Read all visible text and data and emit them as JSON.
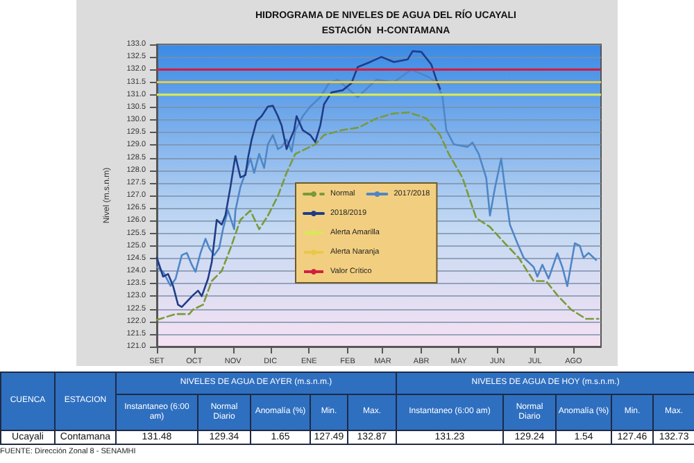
{
  "chart_data": [
    {
      "type": "line",
      "title": "HIDROGRAMA DE NIVELES DE AGUA DEL RÍO UCAYALI",
      "subtitle": "ESTACIÓN  H-CONTAMANA",
      "ylabel": "Nivel (m.s.n.m)",
      "xlim": [
        "2018-09-01",
        "2019-08-23"
      ],
      "xticks": [
        {
          "value": "2018-09-01",
          "label": "SET"
        },
        {
          "value": "2018-10-01",
          "label": "OCT"
        },
        {
          "value": "2018-11-01",
          "label": "NOV"
        },
        {
          "value": "2018-12-01",
          "label": "DIC"
        },
        {
          "value": "2019-01-01",
          "label": "ENE"
        },
        {
          "value": "2019-02-01",
          "label": "FEB"
        },
        {
          "value": "2019-03-01",
          "label": "MAR"
        },
        {
          "value": "2019-04-01",
          "label": "ABR"
        },
        {
          "value": "2019-05-01",
          "label": "MAY"
        },
        {
          "value": "2019-06-01",
          "label": "JUN"
        },
        {
          "value": "2019-07-01",
          "label": "JUL"
        },
        {
          "value": "2019-08-01",
          "label": "AGO"
        }
      ],
      "ylim": [
        121,
        133
      ],
      "yticks": [
        {
          "value": 121,
          "label": "121.0"
        },
        {
          "value": 121.5,
          "label": "121.5"
        },
        {
          "value": 122,
          "label": "122.0"
        },
        {
          "value": 122.5,
          "label": "122.5"
        },
        {
          "value": 123,
          "label": "123.0"
        },
        {
          "value": 123.5,
          "label": "123.5"
        },
        {
          "value": 124,
          "label": "124.0"
        },
        {
          "value": 124.5,
          "label": "124.5"
        },
        {
          "value": 125,
          "label": "125.0"
        },
        {
          "value": 125.5,
          "label": "125.5"
        },
        {
          "value": 126,
          "label": "126.0"
        },
        {
          "value": 126.5,
          "label": "126.5"
        },
        {
          "value": 127,
          "label": "127.0"
        },
        {
          "value": 127.5,
          "label": "127.5"
        },
        {
          "value": 128,
          "label": "128.0"
        },
        {
          "value": 128.5,
          "label": "128.5"
        },
        {
          "value": 129,
          "label": "129.0"
        },
        {
          "value": 129.5,
          "label": "129.5"
        },
        {
          "value": 130,
          "label": "130.0"
        },
        {
          "value": 130.5,
          "label": "130.5"
        },
        {
          "value": 131,
          "label": "131.0"
        },
        {
          "value": 131.5,
          "label": "131.5"
        },
        {
          "value": 132,
          "label": "132.0"
        },
        {
          "value": 132.5,
          "label": "132.5"
        },
        {
          "value": 133,
          "label": "133.0"
        }
      ],
      "grid": "y",
      "legend": "bottom",
      "marker": "none",
      "series": [
        {
          "name": "Normal",
          "color": "#7a9a3a",
          "line_style": "dashed",
          "x": [
            "2018-09-01",
            "2018-09-16",
            "2018-09-27",
            "2018-09-30",
            "2018-10-08",
            "2018-10-15",
            "2018-10-23",
            "2018-10-30",
            "2018-11-07",
            "2018-11-15",
            "2018-11-22",
            "2018-11-29",
            "2018-12-07",
            "2018-12-14",
            "2018-12-21",
            "2018-12-29",
            "2019-01-06",
            "2019-01-13",
            "2019-01-28",
            "2019-02-10",
            "2019-02-24",
            "2019-03-09",
            "2019-03-22",
            "2019-04-05",
            "2019-04-16",
            "2019-04-23",
            "2019-05-04",
            "2019-05-15",
            "2019-05-26",
            "2019-06-07",
            "2019-06-18",
            "2019-06-30",
            "2019-07-10",
            "2019-07-19",
            "2019-07-30",
            "2019-08-11",
            "2019-08-21"
          ],
          "values": [
            122.06,
            122.29,
            122.29,
            122.47,
            122.66,
            123.6,
            124.0,
            124.9,
            126.03,
            126.4,
            125.66,
            126.2,
            126.97,
            127.9,
            128.65,
            128.84,
            129.03,
            129.4,
            129.6,
            129.7,
            130.06,
            130.25,
            130.3,
            130.06,
            129.4,
            128.65,
            127.7,
            126.1,
            125.75,
            125.1,
            124.53,
            123.6,
            123.6,
            123.04,
            122.47,
            122.1,
            122.1
          ]
        },
        {
          "name": "2017/2018",
          "color": "#4f86c6",
          "line_style": "solid",
          "x": [
            "2018-09-01",
            "2018-09-06",
            "2018-09-12",
            "2018-09-16",
            "2018-09-21",
            "2018-09-25",
            "2018-09-29",
            "2018-10-02",
            "2018-10-06",
            "2018-10-10",
            "2018-10-13",
            "2018-10-17",
            "2018-10-21",
            "2018-10-24",
            "2018-10-28",
            "2018-11-02",
            "2018-11-03",
            "2018-11-07",
            "2018-11-11",
            "2018-11-15",
            "2018-11-18",
            "2018-11-22",
            "2018-11-26",
            "2018-11-29",
            "2018-12-03",
            "2018-12-07",
            "2018-12-10",
            "2018-12-14",
            "2018-12-18",
            "2018-12-21",
            "2018-12-27",
            "2019-01-02",
            "2019-01-10",
            "2019-01-17",
            "2019-01-24",
            "2019-02-02",
            "2019-02-09",
            "2019-02-24",
            "2019-03-10",
            "2019-03-24",
            "2019-04-07",
            "2019-04-13",
            "2019-04-18",
            "2019-04-21",
            "2019-04-27",
            "2019-05-08",
            "2019-05-12",
            "2019-05-17",
            "2019-05-23",
            "2019-05-26",
            "2019-05-30",
            "2019-06-04",
            "2019-06-07",
            "2019-06-11",
            "2019-06-17",
            "2019-06-22",
            "2019-06-30",
            "2019-07-03",
            "2019-07-07",
            "2019-07-12",
            "2019-07-19",
            "2019-07-23",
            "2019-07-27",
            "2019-08-02",
            "2019-08-06",
            "2019-08-09",
            "2019-08-13",
            "2019-08-19"
          ],
          "values": [
            124.16,
            123.97,
            123.41,
            123.69,
            124.63,
            124.72,
            124.25,
            123.97,
            124.72,
            125.28,
            124.91,
            124.63,
            124.91,
            125.66,
            126.41,
            125.66,
            126.41,
            127.34,
            127.9,
            128.47,
            127.9,
            128.65,
            128.09,
            129.03,
            129.4,
            128.84,
            128.93,
            129.22,
            128.75,
            129.59,
            130.15,
            130.53,
            130.9,
            131.46,
            131.6,
            131.2,
            130.9,
            131.6,
            131.5,
            132.0,
            131.7,
            131.5,
            130.9,
            129.6,
            129.03,
            128.93,
            129.1,
            128.65,
            127.7,
            126.2,
            127.3,
            128.47,
            127.3,
            125.84,
            125.1,
            124.53,
            124.16,
            123.78,
            124.25,
            123.7,
            124.7,
            124.16,
            123.4,
            125.1,
            125.0,
            124.53,
            124.72,
            124.44
          ]
        },
        {
          "name": "2018/2019",
          "color": "#1f3c88",
          "line_style": "solid",
          "x": [
            "2018-09-01",
            "2018-09-06",
            "2018-09-10",
            "2018-09-14",
            "2018-09-18",
            "2018-09-21",
            "2018-09-30",
            "2018-10-04",
            "2018-10-07",
            "2018-10-12",
            "2018-10-15",
            "2018-10-19",
            "2018-10-23",
            "2018-10-26",
            "2018-10-30",
            "2018-11-02",
            "2018-11-03",
            "2018-11-07",
            "2018-11-11",
            "2018-11-13",
            "2018-11-16",
            "2018-11-20",
            "2018-11-24",
            "2018-11-29",
            "2018-12-03",
            "2018-12-07",
            "2018-12-10",
            "2018-12-14",
            "2018-12-16",
            "2018-12-20",
            "2018-12-22",
            "2018-12-27",
            "2019-01-02",
            "2019-01-06",
            "2019-01-10",
            "2019-01-13",
            "2019-01-19",
            "2019-01-28",
            "2019-02-04",
            "2019-02-09",
            "2019-02-19",
            "2019-02-28",
            "2019-03-10",
            "2019-03-21",
            "2019-03-25",
            "2019-04-01",
            "2019-04-09",
            "2019-04-13",
            "2019-04-16"
          ],
          "values": [
            124.53,
            123.78,
            123.88,
            123.41,
            122.66,
            122.57,
            123.04,
            123.22,
            123.0,
            123.69,
            124.35,
            126.03,
            125.84,
            126.22,
            127.34,
            128.28,
            128.56,
            127.72,
            127.81,
            128.47,
            129.22,
            129.96,
            130.15,
            130.53,
            130.56,
            130.15,
            129.78,
            128.84,
            129.12,
            129.59,
            130.15,
            129.59,
            129.4,
            129.12,
            129.78,
            130.62,
            131.09,
            131.18,
            131.46,
            132.1,
            132.3,
            132.5,
            132.3,
            132.4,
            132.73,
            132.7,
            132.2,
            131.6,
            131.23
          ]
        }
      ],
      "ref_lines": [
        {
          "axis": "y",
          "value": 131,
          "label": "Alerta Amarilla",
          "color": "#d8e858"
        },
        {
          "axis": "y",
          "value": 131.5,
          "label": "Alerta Naranja",
          "color": "#e8c848"
        },
        {
          "axis": "y",
          "value": 132,
          "label": "Valor Crítico",
          "color": "#d02040"
        }
      ]
    },
    {
      "type": "other",
      "annotations": [
        "CUENCA",
        "ESTACION",
        "NIVELES DE AGUA DE AYER (m.s.n.m.)",
        "NIVELES DE AGUA DE HOY (m.s.n.m.)",
        "Instantaneo (6:00 am)",
        "Normal Diario",
        "Anomalía (%)",
        "Min.",
        "Max.",
        "Instantaneo (6:00 am)",
        "Normal Diario",
        "Anomalía (%)",
        "Min.",
        "Max.",
        "Ucayali",
        "Contamana",
        "131.48",
        "129.34",
        "1.65",
        "127.49",
        "132.87",
        "131.23",
        "129.24",
        "1.54",
        "127.46",
        "132.73",
        "FUENTE: Dirección Zonal 8 - SENAMHI"
      ]
    }
  ]
}
